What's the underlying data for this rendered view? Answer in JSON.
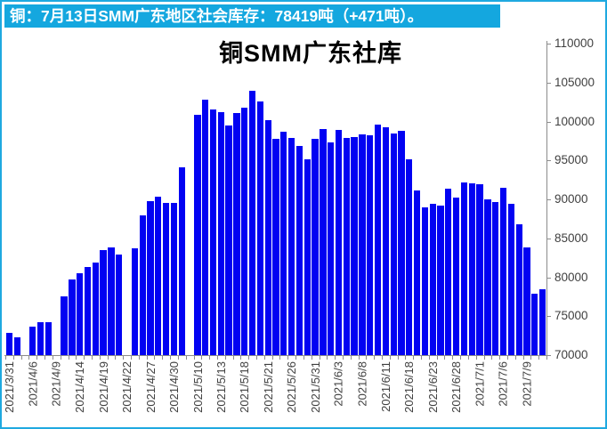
{
  "header": {
    "text": "铜：7月13日SMM广东地区社会库存：78419吨（+471吨）。",
    "bg_color": "#14A7DF",
    "text_color": "#FFFFFF"
  },
  "frame": {
    "border_color": "#1FA9E0",
    "background": "#FFFFFF"
  },
  "chart_data": {
    "type": "bar",
    "title": "铜SMM广东社库",
    "xlabel": "",
    "ylabel": "",
    "ylim": [
      70000,
      110000
    ],
    "ytick_step": 5000,
    "yticks": [
      70000,
      75000,
      80000,
      85000,
      90000,
      95000,
      100000,
      105000,
      110000
    ],
    "grid": false,
    "legend": "none",
    "bar_color": "#0202F2",
    "axis_color": "#8C8C8C",
    "label_color": "#404040",
    "y_axis_side": "right",
    "x_label_rotation": -90,
    "label_every_n_slots": 3,
    "x_labels": [
      "2021/3/31",
      "2021/4/6",
      "2021/4/9",
      "2021/4/14",
      "2021/4/19",
      "2021/4/22",
      "2021/4/27",
      "2021/4/30",
      "2021/5/10",
      "2021/5/13",
      "2021/5/18",
      "2021/5/21",
      "2021/5/26",
      "2021/5/31",
      "2021/6/3",
      "2021/6/8",
      "2021/6/11",
      "2021/6/18",
      "2021/6/23",
      "2021/6/28",
      "2021/7/1",
      "2021/7/6",
      "2021/7/9"
    ],
    "values": [
      72850,
      72280,
      null,
      73700,
      74200,
      74200,
      null,
      77600,
      79700,
      80500,
      81300,
      81900,
      83500,
      83800,
      82900,
      null,
      83700,
      87900,
      89800,
      90300,
      89500,
      89500,
      94100,
      null,
      100900,
      102850,
      101500,
      101200,
      99500,
      101050,
      101800,
      104000,
      102600,
      100200,
      97800,
      98650,
      97900,
      96900,
      95200,
      97800,
      99000,
      97300,
      98900,
      97900,
      98000,
      98400,
      98250,
      99550,
      99300,
      98500,
      98800,
      95200,
      91200,
      89000,
      89400,
      89200,
      91400,
      90250,
      92200,
      92100,
      91900,
      89950,
      89700,
      91450,
      89400,
      86800,
      83800,
      77948,
      78419
    ],
    "latest_value": 78419,
    "latest_change": 471
  }
}
